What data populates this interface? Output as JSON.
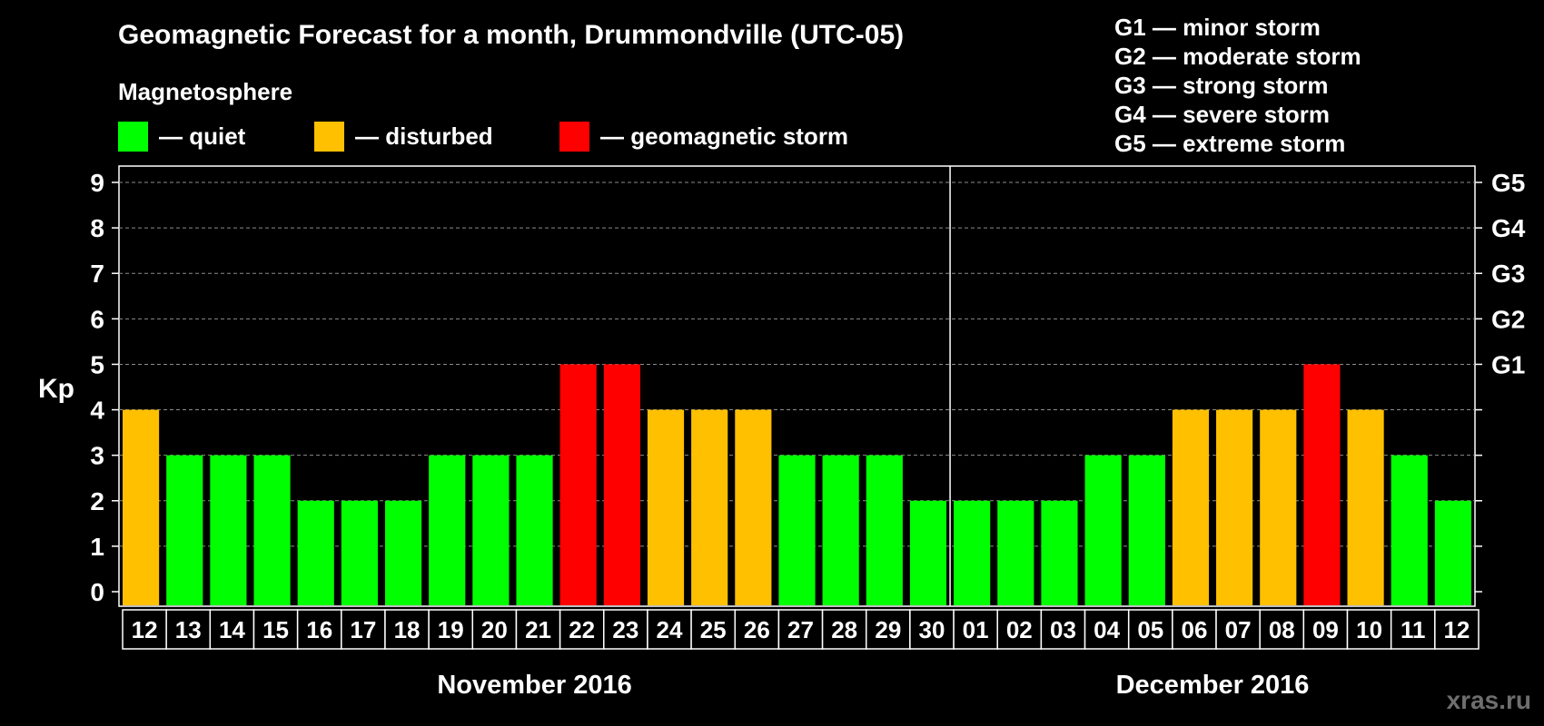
{
  "title": "Geomagnetic Forecast for a month, Drummondville (UTC-05)",
  "subtitle": "Magnetosphere",
  "legend": [
    {
      "label": "— quiet",
      "color": "#00ff00"
    },
    {
      "label": "— disturbed",
      "color": "#ffc000"
    },
    {
      "label": "— geomagnetic storm",
      "color": "#ff0000"
    }
  ],
  "g_scale": [
    "G1 — minor storm",
    "G2 — moderate storm",
    "G3 — strong storm",
    "G4 — severe storm",
    "G5 — extreme storm"
  ],
  "watermark": "xras.ru",
  "chart_data": {
    "type": "bar",
    "ylabel": "Kp",
    "ylim": [
      0,
      9
    ],
    "yticks": [
      0,
      1,
      2,
      3,
      4,
      5,
      6,
      7,
      8,
      9
    ],
    "grid": true,
    "right_axis_labels": [
      {
        "kp": 5,
        "label": "G1"
      },
      {
        "kp": 6,
        "label": "G2"
      },
      {
        "kp": 7,
        "label": "G3"
      },
      {
        "kp": 8,
        "label": "G4"
      },
      {
        "kp": 9,
        "label": "G5"
      }
    ],
    "months": [
      {
        "label": "November 2016",
        "days": 19
      },
      {
        "label": "December 2016",
        "days": 12
      }
    ],
    "categories": [
      "12",
      "13",
      "14",
      "15",
      "16",
      "17",
      "18",
      "19",
      "20",
      "21",
      "22",
      "23",
      "24",
      "25",
      "26",
      "27",
      "28",
      "29",
      "30",
      "01",
      "02",
      "03",
      "04",
      "05",
      "06",
      "07",
      "08",
      "09",
      "10",
      "11",
      "12"
    ],
    "values": [
      4,
      3,
      3,
      3,
      2,
      2,
      2,
      3,
      3,
      3,
      5,
      5,
      4,
      4,
      4,
      3,
      3,
      3,
      2,
      2,
      2,
      2,
      3,
      3,
      4,
      4,
      4,
      5,
      4,
      3,
      2
    ],
    "colors": {
      "quiet": "#00ff00",
      "disturbed": "#ffc000",
      "storm": "#ff0000"
    },
    "color_rule": "Kp <= 3 quiet, Kp = 4 disturbed, Kp >= 5 storm"
  }
}
